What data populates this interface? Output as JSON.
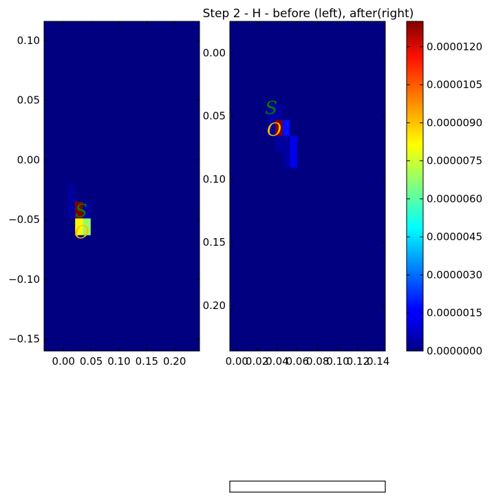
{
  "title": "Step 2 - H - before (left), after(right)",
  "colors": {
    "background": "#000080",
    "frame": "#000000"
  },
  "chart_data": [
    {
      "type": "heatmap",
      "panel": "left",
      "xlim": [
        -0.035,
        0.245
      ],
      "ylim": [
        -0.16,
        0.116
      ],
      "xticks": [
        "0.00",
        "0.05",
        "0.10",
        "0.15",
        "0.20"
      ],
      "xtick_values": [
        0.0,
        0.05,
        0.1,
        0.15,
        0.2
      ],
      "yticks": [
        "0.10",
        "0.05",
        "0.00",
        "−0.05",
        "−0.10",
        "−0.15"
      ],
      "ytick_values": [
        0.1,
        0.05,
        0.0,
        -0.05,
        -0.1,
        -0.15
      ],
      "cell_size": [
        0.014,
        0.014
      ],
      "cells": [
        {
          "x0": 0.007,
          "y0": -0.021,
          "value": 4e-07
        },
        {
          "x0": 0.007,
          "y0": -0.035,
          "value": 4e-07
        },
        {
          "x0": 0.021,
          "y0": -0.035,
          "value": 1.3e-05
        },
        {
          "x0": 0.035,
          "y0": -0.035,
          "value": 4e-07
        },
        {
          "x0": 0.021,
          "y0": -0.049,
          "value": 8.2e-06
        },
        {
          "x0": 0.035,
          "y0": -0.049,
          "value": 6.8e-06
        }
      ],
      "markers": [
        {
          "label": "S",
          "x": 0.032,
          "y": -0.043,
          "color": "#008000"
        },
        {
          "label": "O",
          "x": 0.033,
          "y": -0.061,
          "color": "#ffc000"
        }
      ]
    },
    {
      "type": "heatmap",
      "panel": "right",
      "xlim": [
        -0.007,
        0.147
      ],
      "ylim": [
        -0.236,
        0.025
      ],
      "xticks": [
        "0.00",
        "0.02",
        "0.04",
        "0.06",
        "0.08",
        "0.10",
        "0.12",
        "0.14"
      ],
      "xtick_values": [
        0.0,
        0.02,
        0.04,
        0.06,
        0.08,
        0.1,
        0.12,
        0.14
      ],
      "yticks": [
        "0.00",
        "0.05",
        "0.10",
        "0.15",
        "0.20"
      ],
      "ytick_values": [
        0.0,
        -0.05,
        -0.1,
        -0.15,
        -0.2
      ],
      "ytick_display": "magnitude",
      "cell_size": [
        0.0073,
        0.0126
      ],
      "cells": [
        {
          "x0": 0.0306,
          "y0": -0.0405,
          "value": 4e-07
        },
        {
          "x0": 0.0379,
          "y0": -0.0405,
          "value": 4e-07
        },
        {
          "x0": 0.0306,
          "y0": -0.0531,
          "value": 4e-07
        },
        {
          "x0": 0.0379,
          "y0": -0.0531,
          "value": 1.3e-05
        },
        {
          "x0": 0.0452,
          "y0": -0.0531,
          "value": 1.8e-06
        },
        {
          "x0": 0.0379,
          "y0": -0.0657,
          "value": 4e-07
        },
        {
          "x0": 0.0452,
          "y0": -0.0657,
          "value": 4e-07
        },
        {
          "x0": 0.0452,
          "y0": -0.0783,
          "value": 4e-07
        },
        {
          "x0": 0.0525,
          "y0": -0.0657,
          "value": 1.4e-06
        },
        {
          "x0": 0.0525,
          "y0": -0.0783,
          "value": 1.4e-06
        }
      ],
      "markers": [
        {
          "label": "S",
          "x": 0.034,
          "y": -0.044,
          "color": "#008000"
        },
        {
          "label": "O",
          "x": 0.037,
          "y": -0.061,
          "color": "#ffc000"
        }
      ]
    }
  ],
  "colorbar": {
    "cmap": "jet",
    "vmin": 0,
    "vmax": 1.3e-05,
    "ticks": [
      0.0,
      1.5e-06,
      3e-06,
      4.5e-06,
      6e-06,
      7.5e-06,
      9e-06,
      1.05e-05,
      1.2e-05
    ],
    "tick_labels": [
      "0.0000000",
      "0.0000015",
      "0.0000030",
      "0.0000045",
      "0.0000060",
      "0.0000075",
      "0.0000090",
      "0.0000105",
      "0.0000120"
    ]
  }
}
